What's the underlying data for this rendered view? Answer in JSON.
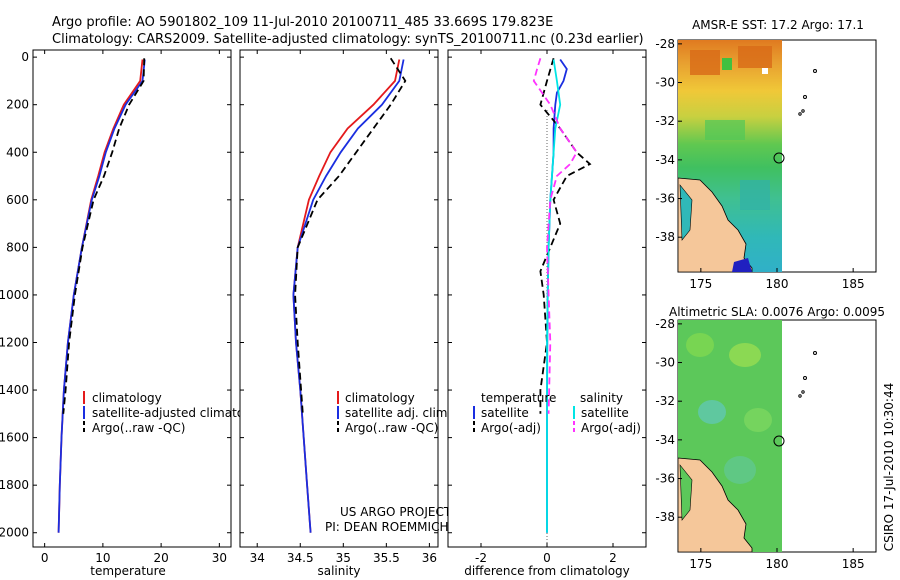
{
  "header": {
    "line1": "Argo profile: AO 5901802_109 11-Jul-2010 20100711_485 33.669S 179.823E",
    "line2": "Climatology: CARS2009. Satellite-adjusted climatology: synTS_20100711.nc (0.23d earlier)"
  },
  "footer": {
    "project": "US ARGO PROJECT",
    "pi": "PI: DEAN ROEMMICH",
    "stamp": "CSIRO 17-Jul-2010 10:30:44"
  },
  "colors": {
    "climatology": "#e41a1c",
    "satellite": "#1a2ee0",
    "argo": "#000000",
    "salinity_sat": "#00e5e5",
    "salinity_argo": "#ff33ff",
    "land": "#f5c79a"
  },
  "chart_data": [
    {
      "type": "line",
      "id": "temperature-profile",
      "xlabel": "temperature",
      "ylabel": "",
      "xlim": [
        -2,
        32
      ],
      "ylim": [
        2060,
        -30
      ],
      "xticks": [
        0,
        10,
        20,
        30
      ],
      "yticks": [
        0,
        200,
        400,
        600,
        800,
        1000,
        1200,
        1400,
        1600,
        1800,
        2000
      ],
      "legend": [
        "climatology",
        "satellite-adjusted climatolo",
        "Argo(..raw -QC)"
      ],
      "series": [
        {
          "name": "climatology",
          "depth": [
            10,
            100,
            200,
            300,
            400,
            500,
            600,
            800,
            1000,
            1200,
            1400,
            1600,
            1800,
            2000
          ],
          "values": [
            16.8,
            16.4,
            13.6,
            11.8,
            10.3,
            9.2,
            8.0,
            6.4,
            5.0,
            4.0,
            3.3,
            2.9,
            2.6,
            2.4
          ]
        },
        {
          "name": "satellite-adjusted climatolo",
          "depth": [
            10,
            100,
            200,
            300,
            400,
            500,
            600,
            800,
            1000,
            1200,
            1400,
            1600,
            1800,
            2000
          ],
          "values": [
            17.2,
            16.8,
            13.9,
            12.0,
            10.5,
            9.4,
            8.1,
            6.4,
            5.0,
            4.0,
            3.3,
            2.9,
            2.6,
            2.4
          ]
        },
        {
          "name": "Argo(..raw -QC)",
          "depth": [
            5,
            100,
            200,
            300,
            400,
            500,
            600,
            800,
            1000,
            1200,
            1400,
            1500
          ],
          "values": [
            17.1,
            17.0,
            14.5,
            12.8,
            11.6,
            10.2,
            8.4,
            6.5,
            5.2,
            4.2,
            3.6,
            3.2
          ]
        }
      ]
    },
    {
      "type": "line",
      "id": "salinity-profile",
      "xlabel": "salinity",
      "ylabel": "",
      "xlim": [
        33.8,
        36.1
      ],
      "ylim": [
        2060,
        -30
      ],
      "xticks": [
        34,
        34.5,
        35,
        35.5,
        36
      ],
      "legend": [
        "climatology",
        "satellite adj. clim.",
        "Argo(..raw -QC)"
      ],
      "series": [
        {
          "name": "climatology",
          "depth": [
            10,
            100,
            200,
            300,
            400,
            500,
            600,
            800,
            1000,
            1200,
            1400,
            1600,
            1800,
            2000
          ],
          "values": [
            35.65,
            35.6,
            35.35,
            35.05,
            34.85,
            34.72,
            34.6,
            34.47,
            34.42,
            34.45,
            34.5,
            34.54,
            34.58,
            34.62
          ]
        },
        {
          "name": "satellite adj. clim.",
          "depth": [
            10,
            100,
            200,
            300,
            400,
            500,
            600,
            800,
            1000,
            1200,
            1400,
            1600,
            1800,
            2000
          ],
          "values": [
            35.7,
            35.65,
            35.45,
            35.17,
            34.97,
            34.8,
            34.65,
            34.47,
            34.42,
            34.45,
            34.5,
            34.54,
            34.58,
            34.62
          ]
        },
        {
          "name": "Argo(..raw -QC)",
          "depth": [
            5,
            100,
            200,
            300,
            400,
            500,
            600,
            800,
            1000,
            1200,
            1400,
            1500
          ],
          "values": [
            35.55,
            35.72,
            35.55,
            35.35,
            35.15,
            34.95,
            34.7,
            34.47,
            34.44,
            34.47,
            34.51,
            34.53
          ]
        }
      ]
    },
    {
      "type": "line",
      "id": "difference-profile",
      "xlabel": "difference from climatology",
      "ylabel": "",
      "xlim": [
        -3,
        3
      ],
      "ylim": [
        2060,
        -30
      ],
      "xticks": [
        -2,
        0,
        2
      ],
      "legend_headers": [
        "temperature",
        "salinity"
      ],
      "legend": [
        "satellite",
        "Argo(-adj)",
        "satellite",
        "Argo(-adj)"
      ],
      "series": [
        {
          "name": "temperature satellite",
          "depth": [
            10,
            50,
            100,
            150,
            200,
            300,
            400,
            500,
            600,
            800,
            1000,
            1200,
            1500,
            2000
          ],
          "values": [
            0.4,
            0.6,
            0.5,
            0.3,
            0.25,
            0.2,
            0.2,
            0.15,
            0.1,
            0.05,
            0.02,
            0.01,
            0.0,
            0.0
          ]
        },
        {
          "name": "temperature Argo(-adj)",
          "depth": [
            5,
            100,
            200,
            300,
            400,
            450,
            500,
            600,
            700,
            800,
            900,
            1000,
            1200,
            1400,
            1500
          ],
          "values": [
            0.2,
            0.0,
            -0.2,
            0.4,
            0.9,
            1.3,
            0.6,
            0.2,
            0.4,
            0.1,
            -0.2,
            -0.1,
            0.0,
            -0.2,
            -0.2
          ]
        },
        {
          "name": "salinity satellite",
          "depth": [
            10,
            100,
            200,
            300,
            400,
            600,
            800,
            1000,
            1200,
            1500,
            2000
          ],
          "values": [
            0.2,
            0.3,
            0.4,
            0.25,
            0.2,
            0.1,
            0.05,
            0.02,
            0.0,
            0.0,
            0.0
          ]
        },
        {
          "name": "salinity Argo(-adj)",
          "depth": [
            5,
            50,
            100,
            200,
            300,
            400,
            450,
            500,
            600,
            800,
            1000,
            1200,
            1500
          ],
          "values": [
            -0.2,
            -0.3,
            -0.4,
            0.1,
            0.4,
            0.9,
            0.7,
            0.3,
            0.1,
            0.0,
            0.05,
            0.1,
            0.05
          ]
        }
      ]
    },
    {
      "type": "heatmap",
      "id": "sst-map",
      "title": "AMSR-E SST: 17.2 Argo: 17.1",
      "xticks": [
        175,
        180,
        185
      ],
      "yticks": [
        -28,
        -30,
        -32,
        -34,
        -36,
        -38
      ],
      "xlim": [
        173.5,
        186.5
      ],
      "ylim": [
        -39.8,
        -27.8
      ],
      "profile_location": [
        179.823,
        -33.669
      ]
    },
    {
      "type": "heatmap",
      "id": "sla-map",
      "title": "Altimetric SLA: 0.0076 Argo: 0.0095",
      "xticks": [
        175,
        180,
        185
      ],
      "yticks": [
        -28,
        -30,
        -32,
        -34,
        -36,
        -38
      ],
      "xlim": [
        173.5,
        186.5
      ],
      "ylim": [
        -39.8,
        -27.8
      ],
      "profile_location": [
        179.823,
        -33.669
      ]
    }
  ]
}
